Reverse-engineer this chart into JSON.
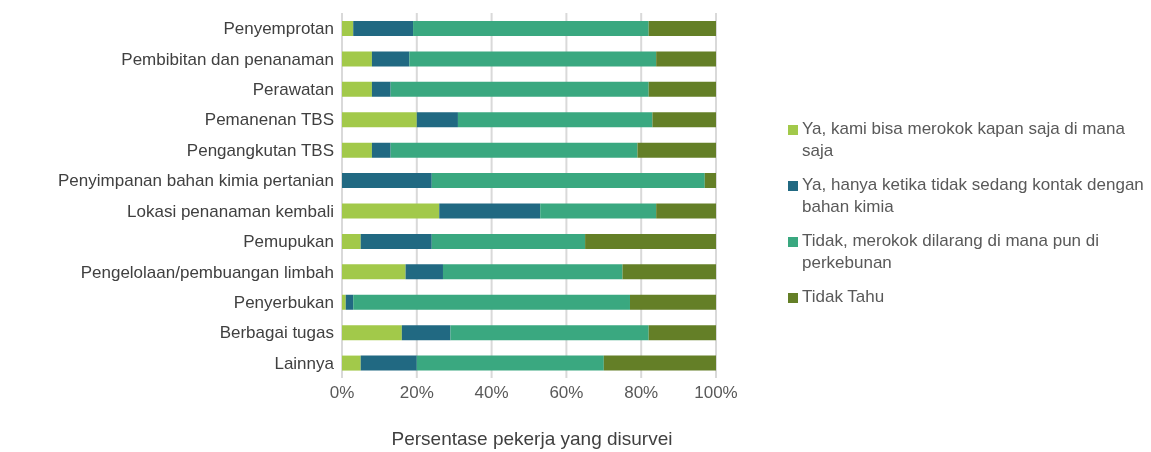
{
  "chart_data": {
    "type": "bar",
    "orientation": "horizontal",
    "stacked": true,
    "categories": [
      "Penyemprotan",
      "Pembibitan dan penanaman",
      "Perawatan",
      "Pemanenan TBS",
      "Pengangkutan TBS",
      "Penyimpanan bahan kimia pertanian",
      "Lokasi penanaman kembali",
      "Pemupukan",
      "Pengelolaan/pembuangan limbah",
      "Penyerbukan",
      "Berbagai tugas",
      "Lainnya"
    ],
    "series": [
      {
        "name": "Ya, kami bisa merokok kapan saja di mana saja",
        "color": "#a2c94a",
        "values": [
          3,
          8,
          8,
          20,
          8,
          0,
          26,
          5,
          17,
          1,
          16,
          5
        ]
      },
      {
        "name": "Ya, hanya ketika tidak sedang kontak dengan bahan kimia",
        "color": "#216982",
        "values": [
          16,
          10,
          5,
          11,
          5,
          24,
          27,
          19,
          10,
          2,
          13,
          15
        ]
      },
      {
        "name": "Tidak, merokok dilarang di mana pun di perkebunan",
        "color": "#3aa880",
        "values": [
          63,
          66,
          69,
          52,
          66,
          73,
          31,
          41,
          48,
          74,
          53,
          50
        ]
      },
      {
        "name": "Tidak Tahu",
        "color": "#647f27",
        "values": [
          18,
          16,
          18,
          17,
          21,
          3,
          16,
          35,
          25,
          23,
          18,
          30
        ]
      }
    ],
    "xlim": [
      0,
      100
    ],
    "xticks": [
      {
        "value": 0,
        "label": "0%"
      },
      {
        "value": 20,
        "label": "20%"
      },
      {
        "value": 40,
        "label": "40%"
      },
      {
        "value": 60,
        "label": "60%"
      },
      {
        "value": 80,
        "label": "80%"
      },
      {
        "value": 100,
        "label": "100%"
      }
    ],
    "xlabel": "Persentase pekerja yang disurvei",
    "grid": "x",
    "legend": "right"
  }
}
